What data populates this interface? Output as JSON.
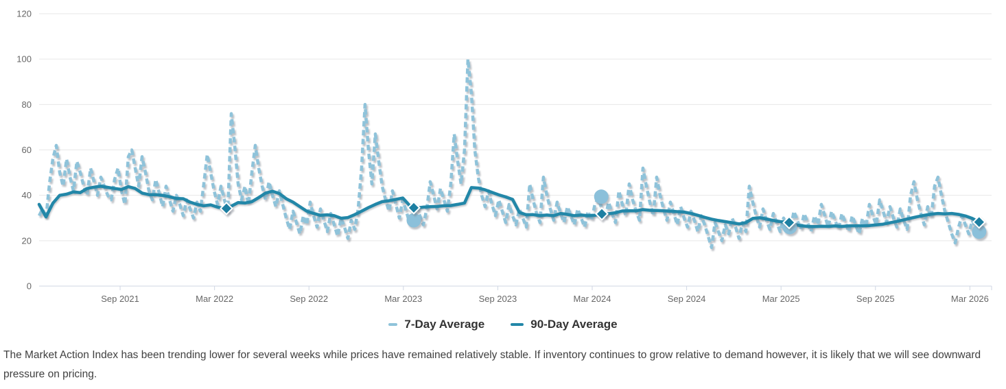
{
  "legend": {
    "items": [
      {
        "label": "7-Day Average",
        "color": "#8fc3da"
      },
      {
        "label": "90-Day Average",
        "color": "#2287a8"
      }
    ]
  },
  "commentary": {
    "text": "The Market Action Index has been trending lower for several weeks while prices have remained relatively stable. If inventory continues to grow relative to demand however, it is likely that we will see downward pressure on pricing."
  },
  "chart_data": {
    "type": "line",
    "title": "",
    "xlabel": "",
    "ylabel": "",
    "grid": true,
    "legend_position": "bottom",
    "xlim": [
      2021.238,
      2026.282
    ],
    "ylim": [
      0,
      120
    ],
    "y_ticks": [
      0,
      20,
      40,
      60,
      80,
      100,
      120
    ],
    "x_ticks": [
      {
        "t": 2021.667,
        "label": "Sep 2021"
      },
      {
        "t": 2022.167,
        "label": "Mar 2022"
      },
      {
        "t": 2022.667,
        "label": "Sep 2022"
      },
      {
        "t": 2023.167,
        "label": "Mar 2023"
      },
      {
        "t": 2023.667,
        "label": "Sep 2023"
      },
      {
        "t": 2024.167,
        "label": "Mar 2024"
      },
      {
        "t": 2024.667,
        "label": "Sep 2024"
      },
      {
        "t": 2025.167,
        "label": "Mar 2025"
      },
      {
        "t": 2025.667,
        "label": "Sep 2025"
      },
      {
        "t": 2026.167,
        "label": "Mar 2026"
      }
    ],
    "series": [
      {
        "name": "7-Day Average",
        "style": "dashed",
        "color": "#8fc3da",
        "t_start": 2021.238,
        "t_step": 0.018168,
        "values": [
          31,
          34,
          30,
          45,
          56,
          62,
          50,
          44,
          56,
          48,
          42,
          55,
          50,
          44,
          40,
          52,
          46,
          40,
          48,
          44,
          40,
          38,
          47,
          52,
          42,
          36,
          57,
          60,
          52,
          44,
          57,
          50,
          42,
          38,
          47,
          41,
          35,
          44,
          38,
          33,
          40,
          36,
          31,
          38,
          34,
          30,
          37,
          33,
          45,
          58,
          50,
          42,
          36,
          44,
          38,
          33,
          76,
          62,
          45,
          38,
          44,
          36,
          50,
          62,
          52,
          44,
          38,
          46,
          40,
          35,
          42,
          36,
          30,
          25,
          33,
          28,
          23,
          31,
          27,
          37,
          31,
          26,
          34,
          29,
          24,
          32,
          27,
          22,
          30,
          26,
          21,
          29,
          25,
          34,
          52,
          80,
          60,
          45,
          67,
          55,
          44,
          38,
          33,
          42,
          36,
          30,
          38,
          33,
          28,
          29,
          35,
          31,
          27,
          34,
          46,
          40,
          34,
          43,
          38,
          33,
          45,
          67,
          55,
          45,
          60,
          100,
          85,
          60,
          48,
          40,
          35,
          42,
          36,
          31,
          38,
          33,
          28,
          36,
          31,
          27,
          34,
          30,
          26,
          45,
          38,
          32,
          28,
          48,
          40,
          34,
          29,
          37,
          32,
          28,
          35,
          31,
          27,
          34,
          30,
          26,
          33,
          29,
          36,
          39,
          34,
          30,
          37,
          32,
          28,
          42,
          36,
          31,
          45,
          38,
          33,
          29,
          52,
          44,
          37,
          31,
          48,
          40,
          34,
          29,
          37,
          32,
          27,
          35,
          30,
          26,
          33,
          29,
          24,
          31,
          27,
          22,
          17,
          28,
          24,
          20,
          27,
          23,
          30,
          26,
          21,
          28,
          24,
          44,
          37,
          31,
          26,
          34,
          29,
          25,
          32,
          28,
          24,
          30,
          26,
          25,
          33,
          29,
          25,
          32,
          28,
          24,
          31,
          27,
          36,
          31,
          26,
          33,
          29,
          25,
          32,
          28,
          24,
          31,
          27,
          23,
          30,
          26,
          36,
          31,
          27,
          38,
          33,
          28,
          35,
          30,
          26,
          34,
          29,
          25,
          40,
          46,
          38,
          32,
          27,
          35,
          30,
          44,
          48,
          40,
          33,
          28,
          23,
          19,
          26,
          31,
          27,
          23,
          29,
          26,
          24
        ]
      },
      {
        "name": "90-Day Average",
        "style": "solid",
        "color": "#2287a8",
        "t_start": 2021.238,
        "t_step": 0.036337,
        "values": [
          36,
          30.5,
          36.5,
          40,
          40.5,
          41.5,
          41.2,
          43,
          43.6,
          44,
          43.5,
          43,
          42.6,
          43.8,
          43,
          41,
          40.3,
          40.3,
          40,
          39.4,
          38.6,
          38.5,
          37,
          36,
          35.4,
          35.8,
          34.8,
          34.2,
          35.2,
          36.8,
          36.6,
          37.2,
          39,
          41,
          41.8,
          40.8,
          38.5,
          37,
          35,
          33,
          32,
          31.2,
          31.4,
          31,
          29.9,
          30.2,
          31.5,
          33,
          34.6,
          36,
          37.2,
          37.6,
          38.2,
          38.8,
          35.5,
          34.4,
          34.8,
          35,
          35.1,
          35.4,
          35.5,
          36,
          36.6,
          43.4,
          43.2,
          42.4,
          41.3,
          40.2,
          39.3,
          38.2,
          32.5,
          31.4,
          31.5,
          31,
          31.3,
          31,
          32,
          31.6,
          31,
          31.3,
          31,
          31.2,
          31.8,
          31.9,
          32.3,
          33.1,
          33.2,
          33.2,
          33.7,
          33.4,
          33.3,
          33.2,
          33,
          32.8,
          32.6,
          32,
          31.2,
          30.3,
          29.5,
          28.9,
          28.4,
          27.9,
          27.4,
          28,
          29.8,
          30.1,
          29.6,
          28.9,
          28.4,
          28.1,
          27.2,
          26.6,
          26.3,
          26.2,
          26.4,
          26.3,
          26.5,
          26.3,
          26.5,
          26.6,
          26.5,
          26.7,
          27,
          27.3,
          27.9,
          28.5,
          29.2,
          29.9,
          30.6,
          31.2,
          31.7,
          32,
          31.8,
          32,
          31.6,
          30.9,
          29.8,
          28.2
        ]
      }
    ],
    "markers": {
      "circles_7day": [
        [
          2023.222,
          29
        ],
        [
          2024.215,
          39.4
        ],
        [
          2025.213,
          26
        ],
        [
          2026.216,
          24
        ]
      ],
      "diamonds_90day": [
        [
          2022.23,
          34.2
        ],
        [
          2023.222,
          34.5
        ],
        [
          2024.218,
          31.8
        ],
        [
          2025.21,
          28
        ],
        [
          2026.216,
          28.2
        ]
      ]
    },
    "colors": {
      "grid": "#e7e7e7",
      "axis": "#cfd6e3",
      "tick_label": "#666666",
      "circle_marker": "#8bc0da",
      "diamond_marker": "#1d7fa2"
    }
  }
}
